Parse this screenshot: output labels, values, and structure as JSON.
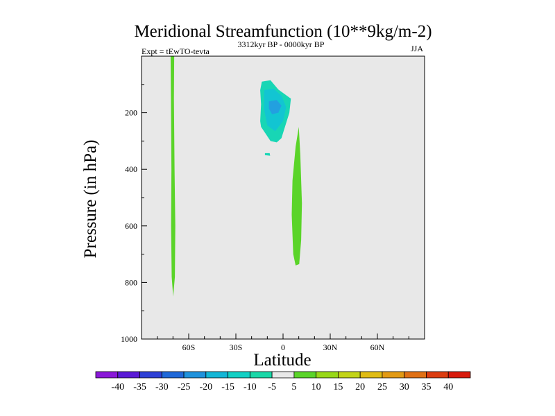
{
  "chart_data": {
    "type": "contour",
    "title": "Meridional Streamfunction (10**9kg/m-2)",
    "left_label": "Expt = tEwTO-tevta",
    "center_label": "3312kyr BP - 0000kyr BP",
    "right_label": "JJA",
    "xlabel": "Latitude",
    "ylabel": "Pressure (in hPa)",
    "xlim": [
      -90,
      90
    ],
    "ylim": [
      1000,
      0
    ],
    "x_ticks": [
      {
        "value": -60,
        "label": "60S"
      },
      {
        "value": -30,
        "label": "30S"
      },
      {
        "value": 0,
        "label": "0"
      },
      {
        "value": 30,
        "label": "30N"
      },
      {
        "value": 60,
        "label": "60N"
      }
    ],
    "y_ticks": [
      {
        "value": 200,
        "label": "200"
      },
      {
        "value": 400,
        "label": "400"
      },
      {
        "value": 600,
        "label": "600"
      },
      {
        "value": 800,
        "label": "800"
      },
      {
        "value": 1000,
        "label": "1000"
      }
    ],
    "background_color": "#e8e8e8",
    "regions": [
      {
        "name": "positive-cell-68s",
        "level": 5,
        "color": "#5ad429",
        "points": [
          [
            -71.5,
            0
          ],
          [
            -69.2,
            0
          ],
          [
            -69.4,
            150
          ],
          [
            -69.0,
            400
          ],
          [
            -68.5,
            600
          ],
          [
            -68.8,
            780
          ],
          [
            -69.9,
            850
          ],
          [
            -70.8,
            780
          ],
          [
            -71.2,
            600
          ],
          [
            -71.0,
            400
          ],
          [
            -71.3,
            150
          ]
        ]
      },
      {
        "name": "negative-cell-upper",
        "level": -5,
        "color": "#18d6b5",
        "points": [
          [
            -13.5,
            90
          ],
          [
            -8,
            85
          ],
          [
            -3,
            118
          ],
          [
            5,
            150
          ],
          [
            4,
            200
          ],
          [
            -1,
            290
          ],
          [
            -4,
            305
          ],
          [
            -8,
            300
          ],
          [
            -14,
            250
          ],
          [
            -14.5,
            230
          ],
          [
            -14,
            170
          ],
          [
            -14.5,
            120
          ]
        ]
      },
      {
        "name": "negative-cell-inner",
        "level": -10,
        "color": "#12c5d2",
        "points": [
          [
            -12,
            120
          ],
          [
            -6,
            115
          ],
          [
            -1,
            140
          ],
          [
            2,
            180
          ],
          [
            0,
            230
          ],
          [
            -5,
            265
          ],
          [
            -10,
            245
          ],
          [
            -12,
            190
          ]
        ]
      },
      {
        "name": "negative-cell-core",
        "level": -15,
        "color": "#22a0e0",
        "points": [
          [
            -9,
            160
          ],
          [
            -4,
            155
          ],
          [
            -1,
            175
          ],
          [
            -3,
            200
          ],
          [
            -7,
            205
          ],
          [
            -9,
            185
          ]
        ]
      },
      {
        "name": "negative-cell-small",
        "level": -5,
        "color": "#18d6b5",
        "points": [
          [
            -11.5,
            343
          ],
          [
            -8.5,
            343
          ],
          [
            -8.2,
            352
          ],
          [
            -11.5,
            350
          ]
        ]
      },
      {
        "name": "positive-cell-equator",
        "level": 5,
        "color": "#5ad429",
        "points": [
          [
            10,
            250
          ],
          [
            11,
            350
          ],
          [
            12,
            520
          ],
          [
            11.5,
            650
          ],
          [
            10.3,
            735
          ],
          [
            8,
            740
          ],
          [
            6.5,
            700
          ],
          [
            5.5,
            560
          ],
          [
            6,
            440
          ],
          [
            8,
            320
          ]
        ]
      }
    ],
    "colorbar": {
      "levels": [
        "-40",
        "-35",
        "-30",
        "-25",
        "-20",
        "-15",
        "-10",
        "-5",
        "5",
        "10",
        "15",
        "20",
        "25",
        "30",
        "35",
        "40"
      ],
      "colors": [
        "#8a18d8",
        "#5a1ad6",
        "#2e40d6",
        "#1f68d8",
        "#1f92dc",
        "#13b6d6",
        "#12d0c4",
        "#1ad8a8",
        "#e8e8e8",
        "#5ad429",
        "#98d818",
        "#c2d418",
        "#e0bc14",
        "#e29a14",
        "#e07014",
        "#dc3c10",
        "#d81a0c"
      ]
    }
  }
}
